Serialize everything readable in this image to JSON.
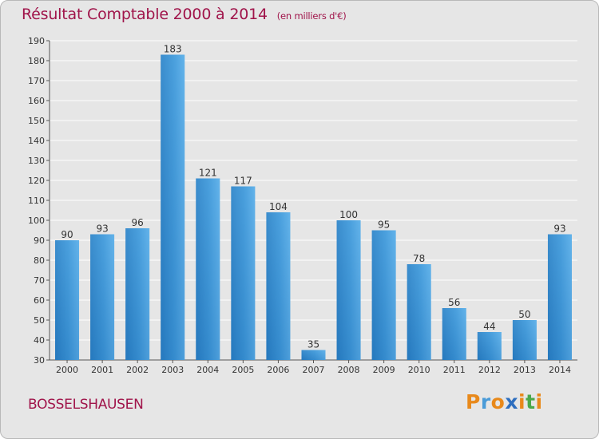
{
  "chart_data": {
    "type": "bar",
    "title": "Résultat Comptable 2000 à 2014",
    "unit_label": "(en milliers d'€)",
    "categories": [
      "2000",
      "2001",
      "2002",
      "2003",
      "2004",
      "2005",
      "2006",
      "2007",
      "2008",
      "2009",
      "2010",
      "2011",
      "2012",
      "2013",
      "2014"
    ],
    "values": [
      90,
      93,
      96,
      183,
      121,
      117,
      104,
      35,
      100,
      95,
      78,
      56,
      44,
      50,
      93
    ],
    "ylim": [
      30,
      190
    ],
    "yticks": [
      30,
      40,
      50,
      60,
      70,
      80,
      90,
      100,
      110,
      120,
      130,
      140,
      150,
      160,
      170,
      180,
      190
    ],
    "xlabel": "",
    "ylabel": "",
    "grid": true,
    "bar_color": "#3d95d6",
    "bar_color_light": "#63b3ea",
    "bar_color_dark": "#2578bd"
  },
  "location": "BOSSELSHAUSEN",
  "brand": {
    "letters": [
      "P",
      "r",
      "o",
      "x",
      "i",
      "t",
      "i"
    ],
    "colors": [
      "#e8891b",
      "#4a9bd8",
      "#e8891b",
      "#2e6fbf",
      "#e8891b",
      "#4aa84a",
      "#e8891b"
    ]
  },
  "colors": {
    "title": "#a0144a",
    "background": "#e6e6e6"
  }
}
